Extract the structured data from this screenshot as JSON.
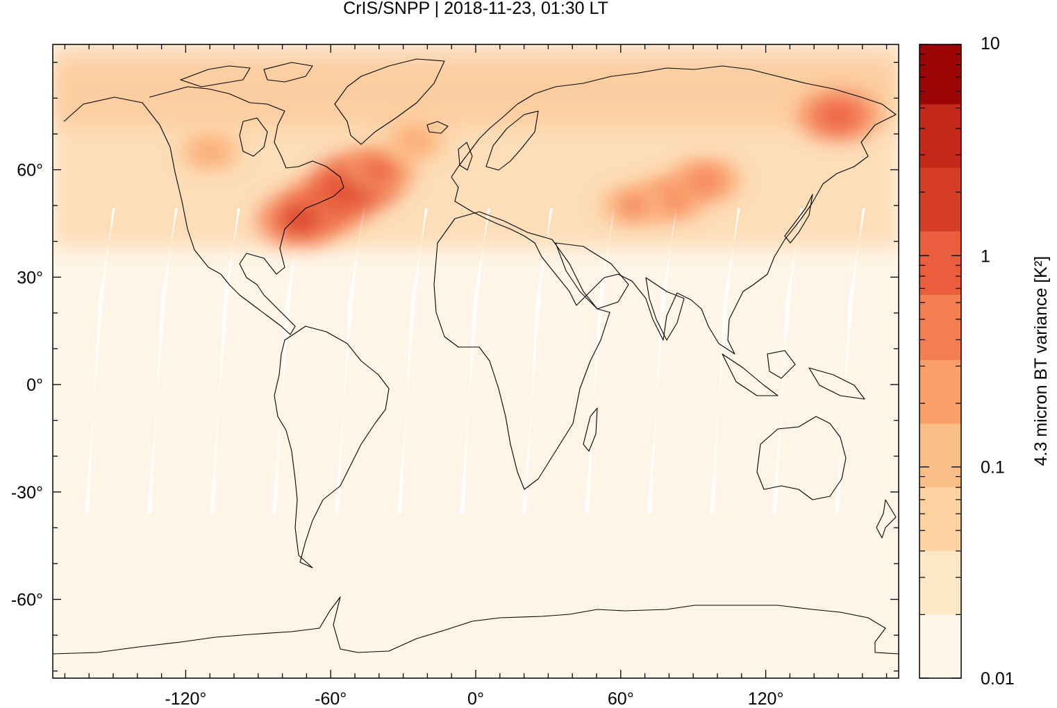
{
  "chart_data": {
    "type": "heatmap",
    "title": "CrIS/SNPP | 2018-11-23, 01:30 LT",
    "projection": "equirectangular",
    "xlim": [
      -175,
      175
    ],
    "ylim": [
      -82,
      95
    ],
    "xticks": [
      -120,
      -60,
      0,
      60,
      120
    ],
    "xtick_labels": [
      "-120°",
      "-60°",
      "0°",
      "60°",
      "120°"
    ],
    "yticks": [
      60,
      30,
      0,
      -30,
      -60
    ],
    "ytick_labels": [
      "60°",
      "30°",
      "0°",
      "-30°",
      "-60°"
    ],
    "grid": false,
    "colorbar": {
      "label": "4.3 micron BT variance [K²]",
      "scale": "log",
      "range": [
        0.01,
        10
      ],
      "tick_values": [
        10,
        1,
        0.1,
        0.01
      ],
      "tick_labels": [
        "10",
        "1",
        "0.1",
        "0.01"
      ],
      "bins": [
        {
          "from": 0.01,
          "to": 0.02,
          "color": "#fef5e8"
        },
        {
          "from": 0.02,
          "to": 0.04,
          "color": "#fde7c7"
        },
        {
          "from": 0.04,
          "to": 0.08,
          "color": "#fdd2a0"
        },
        {
          "from": 0.08,
          "to": 0.16,
          "color": "#fcbe88"
        },
        {
          "from": 0.16,
          "to": 0.32,
          "color": "#fba06a"
        },
        {
          "from": 0.32,
          "to": 0.65,
          "color": "#f57d52"
        },
        {
          "from": 0.65,
          "to": 1.3,
          "color": "#ea5d3d"
        },
        {
          "from": 1.3,
          "to": 2.6,
          "color": "#d63d27"
        },
        {
          "from": 2.6,
          "to": 5.2,
          "color": "#c52818"
        },
        {
          "from": 5.2,
          "to": 10,
          "color": "#9b0506"
        }
      ]
    },
    "hotspots": [
      {
        "lon": -62,
        "lat": 50,
        "value": 1.8
      },
      {
        "lon": -50,
        "lat": 56,
        "value": 2.3
      },
      {
        "lon": -73,
        "lat": 46,
        "value": 1.5
      },
      {
        "lon": -40,
        "lat": 60,
        "value": 0.7
      },
      {
        "lon": 80,
        "lat": 52,
        "value": 0.6
      },
      {
        "lon": 95,
        "lat": 57,
        "value": 0.5
      },
      {
        "lon": 65,
        "lat": 50,
        "value": 0.45
      },
      {
        "lon": 150,
        "lat": 75,
        "value": 1.0
      },
      {
        "lon": -110,
        "lat": 65,
        "value": 0.3
      },
      {
        "lon": -25,
        "lat": 68,
        "value": 0.3
      }
    ],
    "background_value": 0.012
  }
}
